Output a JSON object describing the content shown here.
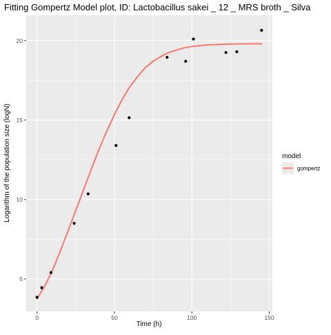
{
  "chart_data": {
    "type": "scatter",
    "title": "Fitting Gompertz Model plot, ID: Lactobacillus sakei _ 12 _ MRS broth _ Silva",
    "xlabel": "Time (h)",
    "ylabel": "Logarithm of the population size (logN)",
    "xlim": [
      -7,
      152
    ],
    "ylim": [
      2.95,
      21.6
    ],
    "x_ticks": [
      0,
      50,
      100,
      150
    ],
    "y_ticks": [
      5,
      10,
      15,
      20
    ],
    "x_tick_labels": [
      "0",
      "50",
      "100",
      "150"
    ],
    "y_tick_labels": [
      "5",
      "10",
      "15",
      "20"
    ],
    "grid": true,
    "legend_position": "right",
    "legend_title": "model",
    "points": {
      "x": [
        0,
        3,
        9,
        24,
        33,
        51,
        59.5,
        84,
        96,
        101,
        122,
        129,
        145
      ],
      "y": [
        3.85,
        4.45,
        5.4,
        8.5,
        10.35,
        13.4,
        15.15,
        18.95,
        18.7,
        20.1,
        19.25,
        19.3,
        20.65
      ],
      "color": "#000000"
    },
    "series": [
      {
        "name": "gompertz",
        "color": "#F8766D",
        "x": [
          0,
          5,
          10,
          15,
          20,
          25,
          30,
          35,
          40,
          45,
          50,
          55,
          60,
          65,
          70,
          75,
          80,
          85,
          90,
          95,
          100,
          110,
          120,
          130,
          140,
          145
        ],
        "y": [
          3.75,
          4.55,
          5.55,
          6.75,
          8.0,
          9.3,
          10.6,
          11.9,
          13.15,
          14.3,
          15.35,
          16.3,
          17.1,
          17.75,
          18.3,
          18.7,
          19.0,
          19.25,
          19.4,
          19.55,
          19.63,
          19.73,
          19.77,
          19.79,
          19.8,
          19.8
        ]
      }
    ]
  }
}
